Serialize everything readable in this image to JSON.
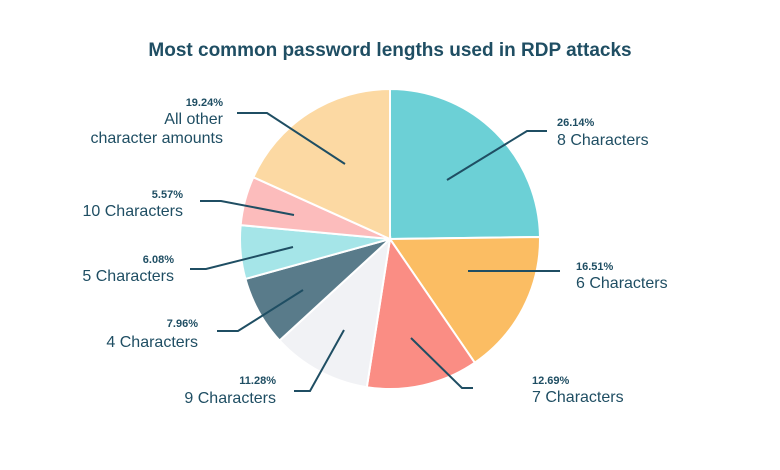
{
  "chart_data": {
    "type": "pie",
    "title": "Most common password lengths used in RDP attacks",
    "slices": [
      {
        "label": [
          "8 Characters"
        ],
        "value": 26.14,
        "pct_label": "26.14%",
        "color": "#6cd0d6"
      },
      {
        "label": [
          "6 Characters"
        ],
        "value": 16.51,
        "pct_label": "16.51%",
        "color": "#fbbd63"
      },
      {
        "label": [
          "7 Characters"
        ],
        "value": 12.69,
        "pct_label": "12.69%",
        "color": "#fa8d84"
      },
      {
        "label": [
          "9 Characters"
        ],
        "value": 11.28,
        "pct_label": "11.28%",
        "color": "#f1f2f5"
      },
      {
        "label": [
          "4 Characters"
        ],
        "value": 7.96,
        "pct_label": "7.96%",
        "color": "#597b8a"
      },
      {
        "label": [
          "5 Characters"
        ],
        "value": 6.08,
        "pct_label": "6.08%",
        "color": "#a5e5e8"
      },
      {
        "label": [
          "10 Characters"
        ],
        "value": 5.57,
        "pct_label": "5.57%",
        "color": "#fcbcbc"
      },
      {
        "label": [
          "All other",
          "character amounts"
        ],
        "value": 19.24,
        "pct_label": "19.24%",
        "color": "#fcd9a3"
      }
    ]
  }
}
